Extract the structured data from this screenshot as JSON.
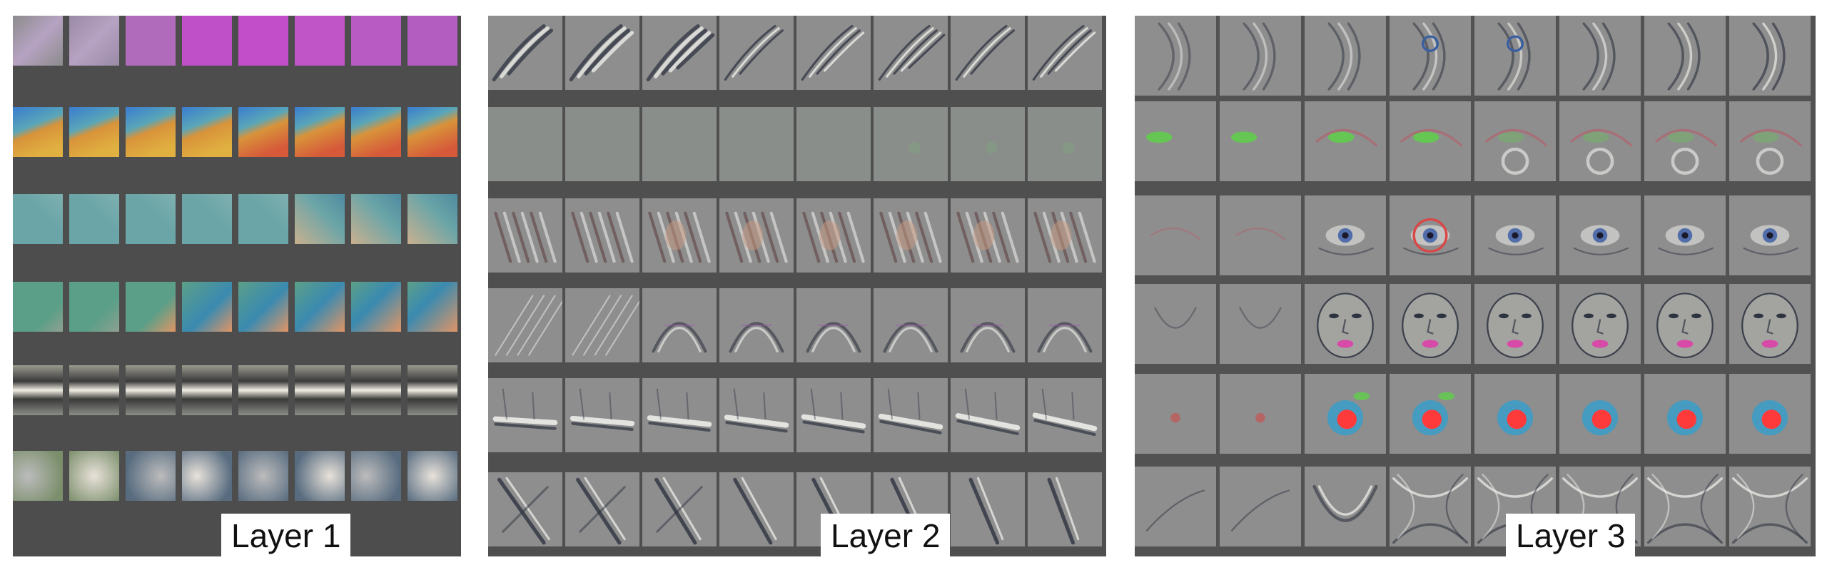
{
  "panels": [
    {
      "id": "layer-1",
      "label": "Layer 1",
      "tile_style": "color-patches",
      "rows": [
        {
          "pattern": "pink-diagonal",
          "colors": [
            "#8c8c8c",
            "#9a8aa6",
            "#b06cba",
            "#c050c8",
            "#c24ec9",
            "#bf55c6",
            "#b85bc2",
            "#b25dbf"
          ]
        },
        {
          "pattern": "orange-blue-split",
          "colors": [
            "#3a7ccf",
            "#d8933a"
          ]
        },
        {
          "pattern": "teal-beige-gradient",
          "colors": [
            "#6ba5a8",
            "#c9b08e"
          ]
        },
        {
          "pattern": "green-orange-split",
          "colors": [
            "#5c9f88",
            "#e09565",
            "#3a8ab0"
          ]
        },
        {
          "pattern": "horizontal-stripe",
          "colors": [
            "#3a3a3a",
            "#f2efe4",
            "#4a5a4a"
          ]
        },
        {
          "pattern": "gray-blobs",
          "colors": [
            "#7c8f6c",
            "#bcbcbc",
            "#586c80"
          ]
        }
      ]
    },
    {
      "id": "layer-2",
      "label": "Layer 2",
      "tile_style": "gray-patches",
      "rows": [
        {
          "pattern": "diagonal-strokes"
        },
        {
          "pattern": "flat-gray"
        },
        {
          "pattern": "diagonal-texture"
        },
        {
          "pattern": "arches"
        },
        {
          "pattern": "horizontal-bar"
        },
        {
          "pattern": "diagonal-lines"
        }
      ]
    },
    {
      "id": "layer-3",
      "label": "Layer 3",
      "tile_style": "gray-patches",
      "rows": [
        {
          "pattern": "curves"
        },
        {
          "pattern": "green-blobs"
        },
        {
          "pattern": "eyes"
        },
        {
          "pattern": "faces"
        },
        {
          "pattern": "red-blue-blobs"
        },
        {
          "pattern": "rings"
        }
      ]
    }
  ]
}
